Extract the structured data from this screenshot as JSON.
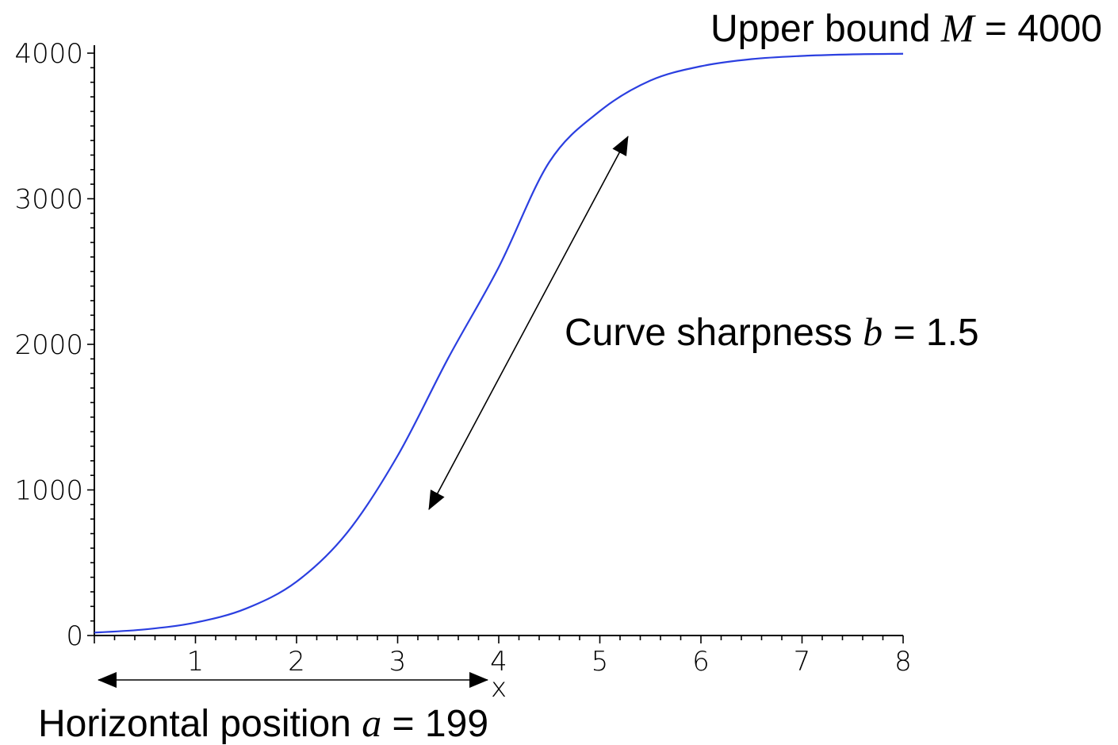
{
  "chart_data": {
    "type": "line",
    "title": "",
    "xlabel": "x",
    "ylabel": "",
    "xlim": [
      0,
      8
    ],
    "ylim": [
      0,
      4000
    ],
    "x_ticks": [
      1,
      2,
      3,
      4,
      5,
      6,
      7,
      8
    ],
    "y_ticks": [
      0,
      1000,
      2000,
      3000,
      4000
    ],
    "x_tick_labels": [
      "1",
      "2",
      "3",
      "4",
      "5",
      "6",
      "7",
      "8"
    ],
    "y_tick_labels": [
      "0",
      "1000",
      "2000",
      "3000",
      "4000"
    ],
    "grid": false,
    "series": [
      {
        "color": "#2b3fe0",
        "x": [
          0,
          0.5,
          1,
          1.5,
          2,
          2.5,
          3,
          3.5,
          4,
          4.5,
          5,
          5.5,
          6,
          6.5,
          7,
          7.5,
          8
        ],
        "y": [
          20,
          42,
          89,
          185,
          370,
          706,
          1235,
          1905,
          2530,
          3252,
          3602,
          3812,
          3910,
          3959,
          3981,
          3992,
          3996
        ]
      }
    ],
    "annotations": {
      "upper_bound": {
        "prefix": "Upper bound ",
        "var": "M",
        "suffix": " = 4000"
      },
      "sharpness": {
        "prefix": "Curve sharpness ",
        "var": "b",
        "suffix": " = 1.5"
      },
      "horizontal": {
        "prefix": "Horizontal position ",
        "var": "a",
        "suffix": " = 199"
      }
    }
  }
}
